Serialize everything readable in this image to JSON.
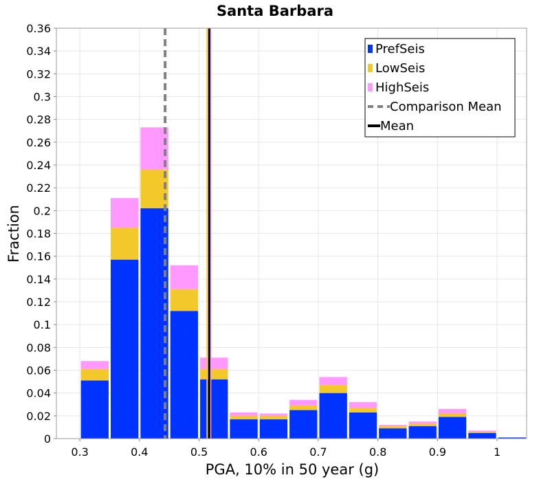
{
  "chart_data": {
    "type": "bar",
    "stacked": true,
    "title": "Santa Barbara",
    "xlabel": "PGA, 10% in 50 year (g)",
    "ylabel": "Fraction",
    "xlim": [
      0.2606,
      1.0495
    ],
    "ylim": [
      0,
      0.36
    ],
    "xticks": [
      "0.3",
      "0.4",
      "0.5",
      "0.6",
      "0.7",
      "0.8",
      "0.9",
      "1"
    ],
    "yticks": [
      "0",
      "0.02",
      "0.04",
      "0.06",
      "0.08",
      "0.1",
      "0.12",
      "0.14",
      "0.16",
      "0.18",
      "0.2",
      "0.22",
      "0.24",
      "0.26",
      "0.28",
      "0.3",
      "0.32",
      "0.34",
      "0.36"
    ],
    "grid": true,
    "legend_position": "top-right",
    "bin_width": 0.05,
    "bin_centers": [
      0.325,
      0.375,
      0.425,
      0.475,
      0.525,
      0.575,
      0.625,
      0.675,
      0.725,
      0.775,
      0.825,
      0.875,
      0.925,
      0.975,
      1.025
    ],
    "series": [
      {
        "name": "PrefSeis",
        "color": "#0033ff",
        "values": [
          0.051,
          0.157,
          0.202,
          0.112,
          0.052,
          0.017,
          0.017,
          0.025,
          0.04,
          0.023,
          0.009,
          0.011,
          0.019,
          0.005,
          0.001
        ]
      },
      {
        "name": "LowSeis",
        "color": "#f2c82b",
        "values": [
          0.01,
          0.028,
          0.034,
          0.019,
          0.009,
          0.003,
          0.003,
          0.004,
          0.007,
          0.004,
          0.002,
          0.002,
          0.003,
          0.001,
          0.0
        ]
      },
      {
        "name": "HighSeis",
        "color": "#ff99ff",
        "values": [
          0.007,
          0.026,
          0.037,
          0.021,
          0.01,
          0.003,
          0.002,
          0.005,
          0.007,
          0.005,
          0.001,
          0.002,
          0.004,
          0.001,
          0.0
        ]
      }
    ],
    "lines": [
      {
        "name": "Comparison Mean",
        "x": 0.443,
        "color": "#808080",
        "style": "dashed"
      },
      {
        "name": "Mean",
        "x": 0.517,
        "color": "#000000",
        "style": "solid"
      }
    ],
    "mean_bar_colors": [
      "#f2c82b",
      "#ff99ff"
    ]
  }
}
